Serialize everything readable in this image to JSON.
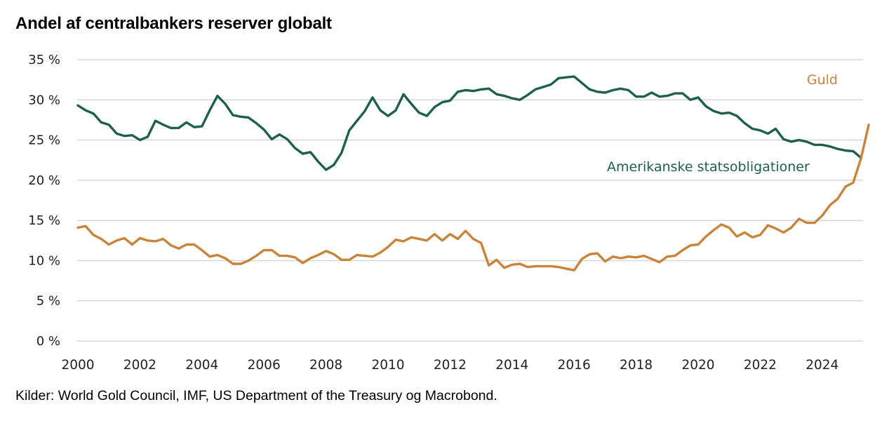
{
  "chart_data": {
    "type": "line",
    "title": "Andel af centralbankers reserver globalt",
    "source": "Kilder: World Gold Council, IMF, US Department of the Treasury og Macrobond.",
    "xlabel": "",
    "ylabel": "",
    "ylim": [
      0,
      35
    ],
    "xlim": [
      2000,
      2025.5
    ],
    "yticks": [
      0,
      5,
      10,
      15,
      20,
      25,
      30,
      35
    ],
    "ytick_labels": [
      "0 %",
      "5 %",
      "10 %",
      "15 %",
      "20 %",
      "25 %",
      "30 %",
      "35 %"
    ],
    "xticks": [
      2000,
      2002,
      2004,
      2006,
      2008,
      2010,
      2012,
      2014,
      2016,
      2018,
      2020,
      2022,
      2024
    ],
    "xtick_labels": [
      "2000",
      "2002",
      "2004",
      "2006",
      "2008",
      "2010",
      "2012",
      "2014",
      "2016",
      "2018",
      "2020",
      "2022",
      "2024"
    ],
    "grid": true,
    "x_start": 2000,
    "x_step": 0.25,
    "series": [
      {
        "name": "Amerikanske statsobligationer",
        "color": "#1e5f50",
        "label_position": "right, below line",
        "values": [
          29.3,
          28.7,
          28.3,
          27.2,
          26.9,
          25.8,
          25.5,
          25.6,
          25.0,
          25.4,
          27.4,
          26.9,
          26.5,
          26.5,
          27.2,
          26.6,
          26.7,
          28.7,
          30.5,
          29.5,
          28.1,
          27.9,
          27.8,
          27.1,
          26.3,
          25.1,
          25.7,
          25.1,
          24.0,
          23.3,
          23.5,
          22.3,
          21.3,
          21.9,
          23.4,
          26.2,
          27.4,
          28.6,
          30.3,
          28.7,
          28.0,
          28.7,
          30.7,
          29.5,
          28.4,
          28.0,
          29.1,
          29.7,
          29.9,
          31.0,
          31.2,
          31.1,
          31.3,
          31.4,
          30.7,
          30.5,
          30.2,
          30.0,
          30.6,
          31.3,
          31.6,
          31.9,
          32.7,
          32.8,
          32.9,
          32.1,
          31.3,
          31.0,
          30.9,
          31.2,
          31.4,
          31.2,
          30.4,
          30.4,
          30.9,
          30.4,
          30.5,
          30.8,
          30.8,
          30.0,
          30.3,
          29.2,
          28.6,
          28.3,
          28.4,
          28.0,
          27.1,
          26.4,
          26.2,
          25.8,
          26.4,
          25.1,
          24.8,
          25.0,
          24.8,
          24.4,
          24.4,
          24.2,
          23.9,
          23.7,
          23.6,
          22.8
        ]
      },
      {
        "name": "Guld",
        "color": "#c8843a",
        "label_position": "top-right",
        "values": [
          14.1,
          14.3,
          13.2,
          12.7,
          12.0,
          12.5,
          12.8,
          12.0,
          12.8,
          12.5,
          12.4,
          12.7,
          11.9,
          11.5,
          12.0,
          12.0,
          11.3,
          10.5,
          10.7,
          10.3,
          9.6,
          9.6,
          10.0,
          10.6,
          11.3,
          11.3,
          10.6,
          10.6,
          10.4,
          9.7,
          10.3,
          10.7,
          11.2,
          10.8,
          10.1,
          10.1,
          10.7,
          10.6,
          10.5,
          11.0,
          11.7,
          12.6,
          12.4,
          12.9,
          12.7,
          12.5,
          13.3,
          12.5,
          13.3,
          12.7,
          13.7,
          12.7,
          12.2,
          9.4,
          10.1,
          9.1,
          9.5,
          9.6,
          9.2,
          9.3,
          9.3,
          9.3,
          9.2,
          9.0,
          8.8,
          10.2,
          10.8,
          10.9,
          9.9,
          10.5,
          10.3,
          10.5,
          10.4,
          10.6,
          10.2,
          9.8,
          10.5,
          10.6,
          11.3,
          11.9,
          12.0,
          13.0,
          13.8,
          14.5,
          14.1,
          13.0,
          13.5,
          12.9,
          13.2,
          14.4,
          14.0,
          13.5,
          14.1,
          15.2,
          14.7,
          14.7,
          15.6,
          16.9,
          17.7,
          19.2,
          19.7,
          22.7,
          26.9
        ]
      }
    ]
  }
}
